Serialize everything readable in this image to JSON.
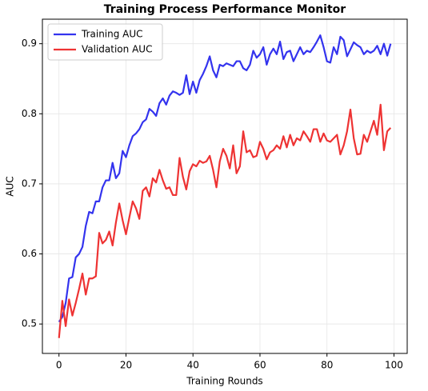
{
  "chart_data": {
    "type": "line",
    "title": "Training Process Performance Monitor",
    "x_label": "Training Rounds",
    "y_label": "AUC",
    "x": [
      0,
      1,
      2,
      3,
      4,
      5,
      6,
      7,
      8,
      9,
      10,
      11,
      12,
      13,
      14,
      15,
      16,
      17,
      18,
      19,
      20,
      21,
      22,
      23,
      24,
      25,
      26,
      27,
      28,
      29,
      30,
      31,
      32,
      33,
      34,
      35,
      36,
      37,
      38,
      39,
      40,
      41,
      42,
      43,
      44,
      45,
      46,
      47,
      48,
      49,
      50,
      51,
      52,
      53,
      54,
      55,
      56,
      57,
      58,
      59,
      60,
      61,
      62,
      63,
      64,
      65,
      66,
      67,
      68,
      69,
      70,
      71,
      72,
      73,
      74,
      75,
      76,
      77,
      78,
      79,
      80,
      81,
      82,
      83,
      84,
      85,
      86,
      87,
      88,
      89,
      90,
      91,
      92,
      93,
      94,
      95,
      96,
      97,
      98,
      99
    ],
    "series": [
      {
        "name": "Training AUC",
        "color": "#3333ee",
        "values": [
          0.503,
          0.51,
          0.53,
          0.565,
          0.567,
          0.595,
          0.6,
          0.61,
          0.64,
          0.66,
          0.658,
          0.675,
          0.675,
          0.695,
          0.705,
          0.705,
          0.73,
          0.708,
          0.715,
          0.747,
          0.738,
          0.755,
          0.768,
          0.772,
          0.778,
          0.788,
          0.792,
          0.807,
          0.803,
          0.797,
          0.815,
          0.822,
          0.813,
          0.826,
          0.832,
          0.83,
          0.827,
          0.83,
          0.855,
          0.828,
          0.846,
          0.83,
          0.848,
          0.857,
          0.868,
          0.882,
          0.862,
          0.852,
          0.87,
          0.868,
          0.872,
          0.87,
          0.868,
          0.875,
          0.875,
          0.865,
          0.862,
          0.87,
          0.89,
          0.88,
          0.885,
          0.895,
          0.87,
          0.885,
          0.893,
          0.885,
          0.903,
          0.878,
          0.888,
          0.89,
          0.875,
          0.885,
          0.895,
          0.885,
          0.89,
          0.888,
          0.895,
          0.903,
          0.912,
          0.895,
          0.875,
          0.873,
          0.895,
          0.885,
          0.91,
          0.905,
          0.882,
          0.892,
          0.902,
          0.898,
          0.895,
          0.885,
          0.89,
          0.887,
          0.89,
          0.897,
          0.885,
          0.9,
          0.883,
          0.9
        ]
      },
      {
        "name": "Validation AUC",
        "color": "#ee3333",
        "values": [
          0.48,
          0.533,
          0.497,
          0.535,
          0.512,
          0.53,
          0.55,
          0.572,
          0.542,
          0.565,
          0.565,
          0.568,
          0.63,
          0.615,
          0.62,
          0.632,
          0.612,
          0.645,
          0.672,
          0.648,
          0.628,
          0.652,
          0.675,
          0.665,
          0.65,
          0.69,
          0.695,
          0.682,
          0.708,
          0.702,
          0.72,
          0.705,
          0.693,
          0.695,
          0.684,
          0.684,
          0.737,
          0.71,
          0.692,
          0.718,
          0.728,
          0.725,
          0.733,
          0.73,
          0.732,
          0.74,
          0.72,
          0.695,
          0.732,
          0.75,
          0.74,
          0.722,
          0.755,
          0.715,
          0.725,
          0.775,
          0.745,
          0.748,
          0.738,
          0.74,
          0.76,
          0.75,
          0.735,
          0.745,
          0.748,
          0.755,
          0.75,
          0.768,
          0.752,
          0.77,
          0.755,
          0.765,
          0.762,
          0.775,
          0.768,
          0.76,
          0.778,
          0.778,
          0.76,
          0.772,
          0.762,
          0.76,
          0.765,
          0.77,
          0.742,
          0.755,
          0.775,
          0.806,
          0.765,
          0.742,
          0.743,
          0.77,
          0.76,
          0.775,
          0.79,
          0.77,
          0.813,
          0.748,
          0.775,
          0.78
        ]
      }
    ],
    "xlim": [
      -4.95,
      103.95
    ],
    "ylim": [
      0.458,
      0.935
    ],
    "xticks": [
      0,
      20,
      40,
      60,
      80,
      100
    ],
    "yticks": [
      0.5,
      0.6,
      0.7,
      0.8,
      0.9
    ],
    "grid": true,
    "legend": "upper left"
  }
}
